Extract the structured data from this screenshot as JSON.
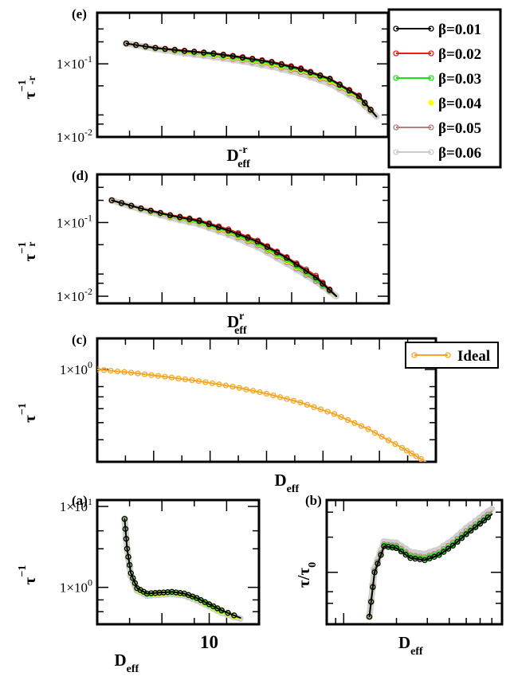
{
  "chart_data": [
    {
      "panel": "(e)",
      "type": "line",
      "xlabel": {
        "base": "D",
        "sup": "-r",
        "sub": "eff"
      },
      "ylabel": {
        "base": "τ",
        "sup": "−1",
        "post": "-r"
      },
      "yscale": "log",
      "ytick_labels": [
        "1×10",
        "1×10"
      ],
      "ytick_exps": [
        "-1",
        "-2"
      ],
      "ytick_values": [
        0.1,
        0.01
      ],
      "ylim": [
        0.01,
        0.5
      ],
      "xlim": [
        0,
        1
      ],
      "legend": {
        "placement": "top-right"
      },
      "series": [
        {
          "name": "β=0.01",
          "color": "#000000",
          "marker": "circle",
          "x": [
            0.1,
            0.2,
            0.3,
            0.4,
            0.5,
            0.6,
            0.7,
            0.8,
            0.9,
            0.96
          ],
          "y": [
            0.19,
            0.165,
            0.15,
            0.138,
            0.122,
            0.105,
            0.085,
            0.062,
            0.036,
            0.019
          ]
        },
        {
          "name": "β=0.02",
          "color": "#e8201c",
          "marker": "circle",
          "x": [
            0.1,
            0.2,
            0.3,
            0.4,
            0.5,
            0.6,
            0.7,
            0.8,
            0.9,
            0.96
          ],
          "y": [
            0.19,
            0.166,
            0.152,
            0.14,
            0.124,
            0.107,
            0.087,
            0.063,
            0.037,
            0.019
          ]
        },
        {
          "name": "β=0.03",
          "color": "#22dd22",
          "marker": "circle",
          "x": [
            0.1,
            0.2,
            0.3,
            0.4,
            0.5,
            0.6,
            0.7,
            0.8,
            0.9,
            0.96
          ],
          "y": [
            0.19,
            0.164,
            0.148,
            0.134,
            0.118,
            0.101,
            0.082,
            0.06,
            0.035,
            0.019
          ]
        },
        {
          "name": "β=0.04",
          "color": "#ffff00",
          "marker": "circle",
          "x": [
            0.1,
            0.2,
            0.3,
            0.4,
            0.5,
            0.6,
            0.7,
            0.8,
            0.9,
            0.96
          ],
          "y": [
            0.19,
            0.163,
            0.146,
            0.131,
            0.115,
            0.098,
            0.08,
            0.058,
            0.034,
            0.019
          ]
        },
        {
          "name": "β=0.05",
          "color": "#b88080",
          "marker": "circle",
          "x": [
            0.1,
            0.2,
            0.3,
            0.4,
            0.5,
            0.6,
            0.7,
            0.8,
            0.9,
            0.96
          ],
          "y": [
            0.19,
            0.162,
            0.144,
            0.128,
            0.112,
            0.095,
            0.077,
            0.056,
            0.033,
            0.019
          ]
        },
        {
          "name": "β=0.06",
          "color": "#cccccc",
          "marker": "circle",
          "x": [
            0.1,
            0.2,
            0.3,
            0.4,
            0.5,
            0.6,
            0.7,
            0.8,
            0.9,
            0.96
          ],
          "y": [
            0.19,
            0.161,
            0.141,
            0.125,
            0.109,
            0.092,
            0.074,
            0.054,
            0.032,
            0.019
          ]
        }
      ]
    },
    {
      "panel": "(d)",
      "type": "line",
      "xlabel": {
        "base": "D",
        "sup": "r",
        "sub": "eff"
      },
      "ylabel": {
        "base": "τ",
        "sup": "−1",
        "post": "r"
      },
      "yscale": "log",
      "ytick_labels": [
        "1×10",
        "1×10"
      ],
      "ytick_exps": [
        "-1",
        "-2"
      ],
      "ytick_values": [
        0.1,
        0.01
      ],
      "ylim": [
        0.008,
        0.45
      ],
      "xlim": [
        0,
        1
      ],
      "series": [
        {
          "name": "β=0.01",
          "color": "#000000",
          "x": [
            0.05,
            0.15,
            0.25,
            0.35,
            0.45,
            0.55,
            0.65,
            0.75,
            0.82
          ],
          "y": [
            0.2,
            0.155,
            0.125,
            0.105,
            0.078,
            0.055,
            0.033,
            0.018,
            0.01
          ]
        },
        {
          "name": "β=0.02",
          "color": "#e8201c",
          "x": [
            0.05,
            0.15,
            0.25,
            0.35,
            0.45,
            0.55,
            0.65,
            0.75,
            0.82
          ],
          "y": [
            0.2,
            0.156,
            0.127,
            0.108,
            0.081,
            0.057,
            0.034,
            0.019,
            0.01
          ]
        },
        {
          "name": "β=0.03",
          "color": "#22dd22",
          "x": [
            0.05,
            0.15,
            0.25,
            0.35,
            0.45,
            0.55,
            0.65,
            0.75,
            0.82
          ],
          "y": [
            0.2,
            0.154,
            0.123,
            0.101,
            0.075,
            0.052,
            0.031,
            0.017,
            0.01
          ]
        },
        {
          "name": "β=0.04",
          "color": "#ffff00",
          "x": [
            0.05,
            0.15,
            0.25,
            0.35,
            0.45,
            0.55,
            0.65,
            0.75,
            0.82
          ],
          "y": [
            0.2,
            0.153,
            0.121,
            0.099,
            0.073,
            0.051,
            0.03,
            0.017,
            0.01
          ]
        },
        {
          "name": "β=0.05",
          "color": "#b88080",
          "x": [
            0.05,
            0.15,
            0.25,
            0.35,
            0.45,
            0.55,
            0.65,
            0.75,
            0.82
          ],
          "y": [
            0.2,
            0.152,
            0.119,
            0.097,
            0.071,
            0.049,
            0.029,
            0.016,
            0.01
          ]
        },
        {
          "name": "β=0.06",
          "color": "#cccccc",
          "x": [
            0.05,
            0.15,
            0.25,
            0.35,
            0.45,
            0.55,
            0.65,
            0.75,
            0.82
          ],
          "y": [
            0.2,
            0.151,
            0.117,
            0.095,
            0.069,
            0.047,
            0.028,
            0.016,
            0.01
          ]
        }
      ]
    },
    {
      "panel": "(c)",
      "type": "line",
      "xlabel": {
        "base": "D",
        "sub": "eff"
      },
      "ylabel": {
        "base": "τ",
        "sup": "−1"
      },
      "yscale": "log",
      "ytick_labels": [
        "1×10"
      ],
      "ytick_exps": [
        "0"
      ],
      "ytick_values": [
        1
      ],
      "ylim": [
        0.3,
        1.5
      ],
      "xlim": [
        0,
        1
      ],
      "legend": {
        "placement": "top-right"
      },
      "series": [
        {
          "name": "Ideal",
          "color": "#f5a623",
          "marker": "circle",
          "x": [
            0,
            0.1,
            0.2,
            0.3,
            0.4,
            0.5,
            0.6,
            0.7,
            0.8,
            0.9,
            0.97
          ],
          "y": [
            1.0,
            0.96,
            0.91,
            0.86,
            0.8,
            0.73,
            0.65,
            0.56,
            0.46,
            0.36,
            0.3
          ]
        }
      ]
    },
    {
      "panel": "(a)",
      "type": "line",
      "xlabel": {
        "base": "D",
        "sub": "eff"
      },
      "ylabel": {
        "base": "τ",
        "sup": "−1"
      },
      "yscale": "log",
      "ytick_labels": [
        "1×10",
        "1×10"
      ],
      "ytick_exps": [
        "1",
        "0"
      ],
      "ytick_values": [
        10,
        1
      ],
      "xtick_labels": [
        "10"
      ],
      "xtick_values": [
        10
      ],
      "ylim": [
        0.35,
        12
      ],
      "xlim": [
        1,
        14
      ],
      "series": [
        {
          "name": "β=0.01",
          "color": "#000000",
          "x": [
            3.2,
            3.4,
            3.7,
            4.2,
            5,
            6,
            7,
            8,
            9,
            10,
            11,
            12.5
          ],
          "y": [
            7,
            3,
            1.5,
            0.98,
            0.84,
            0.86,
            0.88,
            0.84,
            0.74,
            0.62,
            0.52,
            0.42
          ]
        },
        {
          "name": "β=0.03",
          "color": "#22dd22",
          "x": [
            3.2,
            3.4,
            3.7,
            4.2,
            5,
            6,
            7,
            8,
            9,
            10,
            11,
            12.5
          ],
          "y": [
            7,
            3,
            1.5,
            0.97,
            0.83,
            0.85,
            0.87,
            0.83,
            0.73,
            0.61,
            0.51,
            0.42
          ]
        },
        {
          "name": "β=0.04",
          "color": "#ffff00",
          "x": [
            3.2,
            3.4,
            3.7,
            4.2,
            5,
            6,
            7,
            8,
            9,
            10,
            11,
            12.5
          ],
          "y": [
            7,
            3,
            1.5,
            0.96,
            0.82,
            0.84,
            0.86,
            0.82,
            0.72,
            0.6,
            0.5,
            0.41
          ]
        },
        {
          "name": "β=0.06",
          "color": "#cccccc",
          "x": [
            3.2,
            3.4,
            3.7,
            4.2,
            5,
            6,
            7,
            8,
            9,
            10,
            11,
            12.5
          ],
          "y": [
            7,
            3,
            1.4,
            0.93,
            0.8,
            0.82,
            0.84,
            0.8,
            0.7,
            0.59,
            0.49,
            0.41
          ]
        }
      ]
    },
    {
      "panel": "(b)",
      "type": "line",
      "xlabel": {
        "base": "D",
        "sub": "eff"
      },
      "ylabel": {
        "base": "τ/τ",
        "sub": "0"
      },
      "yscale": "log",
      "xscale": "log",
      "ylim": [
        0.55,
        2.3
      ],
      "xlim": [
        0.8,
        8
      ],
      "series": [
        {
          "name": "β=0.01",
          "color": "#000000",
          "x": [
            1.4,
            1.5,
            1.7,
            2,
            2.4,
            2.9,
            3.5,
            4.2,
            5,
            6,
            7
          ],
          "y": [
            0.6,
            1.0,
            1.35,
            1.32,
            1.18,
            1.15,
            1.22,
            1.36,
            1.55,
            1.75,
            1.95
          ]
        },
        {
          "name": "β=0.03",
          "color": "#22dd22",
          "x": [
            1.4,
            1.5,
            1.7,
            2,
            2.4,
            2.9,
            3.5,
            4.2,
            5,
            6,
            7
          ],
          "y": [
            0.6,
            1.0,
            1.36,
            1.34,
            1.2,
            1.17,
            1.24,
            1.38,
            1.57,
            1.77,
            1.97
          ]
        },
        {
          "name": "β=0.04",
          "color": "#ffff00",
          "x": [
            1.4,
            1.5,
            1.7,
            2,
            2.4,
            2.9,
            3.5,
            4.2,
            5,
            6,
            7
          ],
          "y": [
            0.6,
            1.0,
            1.36,
            1.34,
            1.2,
            1.17,
            1.24,
            1.38,
            1.57,
            1.77,
            1.97
          ]
        },
        {
          "name": "β=0.05",
          "color": "#b88080",
          "x": [
            1.4,
            1.5,
            1.7,
            2,
            2.4,
            2.9,
            3.5,
            4.2,
            5,
            6,
            7
          ],
          "y": [
            0.6,
            1.02,
            1.38,
            1.36,
            1.22,
            1.19,
            1.26,
            1.41,
            1.61,
            1.81,
            2.02
          ]
        },
        {
          "name": "β=0.06",
          "color": "#cccccc",
          "x": [
            1.4,
            1.5,
            1.7,
            2,
            2.4,
            2.9,
            3.5,
            4.2,
            5,
            6,
            7
          ],
          "y": [
            0.6,
            1.04,
            1.42,
            1.4,
            1.26,
            1.23,
            1.3,
            1.45,
            1.66,
            1.87,
            2.08
          ]
        }
      ]
    }
  ]
}
